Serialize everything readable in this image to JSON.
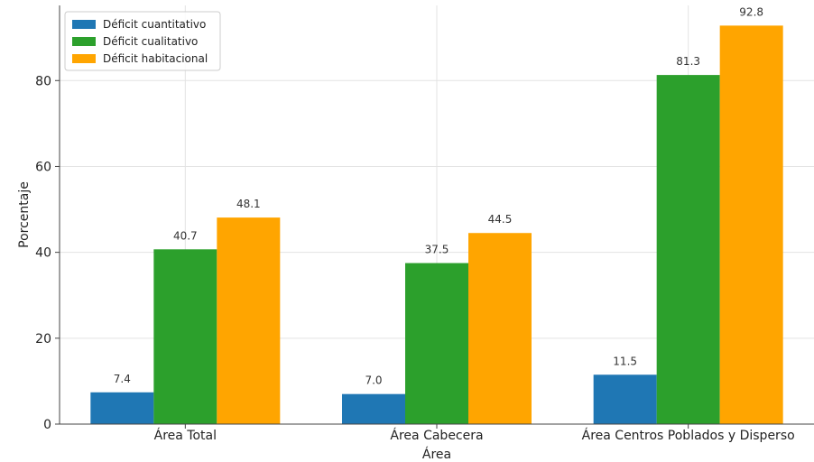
{
  "chart_data": {
    "type": "bar",
    "categories": [
      "Área Total",
      "Área Cabecera",
      "Área Centros Poblados y Disperso"
    ],
    "series": [
      {
        "name": "Déficit cuantitativo",
        "color": "#1f77b4",
        "values": [
          7.4,
          7.0,
          11.5
        ]
      },
      {
        "name": "Déficit cualitativo",
        "color": "#2ca02c",
        "values": [
          40.7,
          37.5,
          81.3
        ]
      },
      {
        "name": "Déficit habitacional",
        "color": "#ffa500",
        "values": [
          48.1,
          44.5,
          92.8
        ]
      }
    ],
    "xlabel": "Área",
    "ylabel": "Porcentaje",
    "ylim": [
      0,
      97.5
    ],
    "yticks": [
      0,
      20,
      40,
      60,
      80
    ],
    "grid": true,
    "legend": "top-left"
  }
}
